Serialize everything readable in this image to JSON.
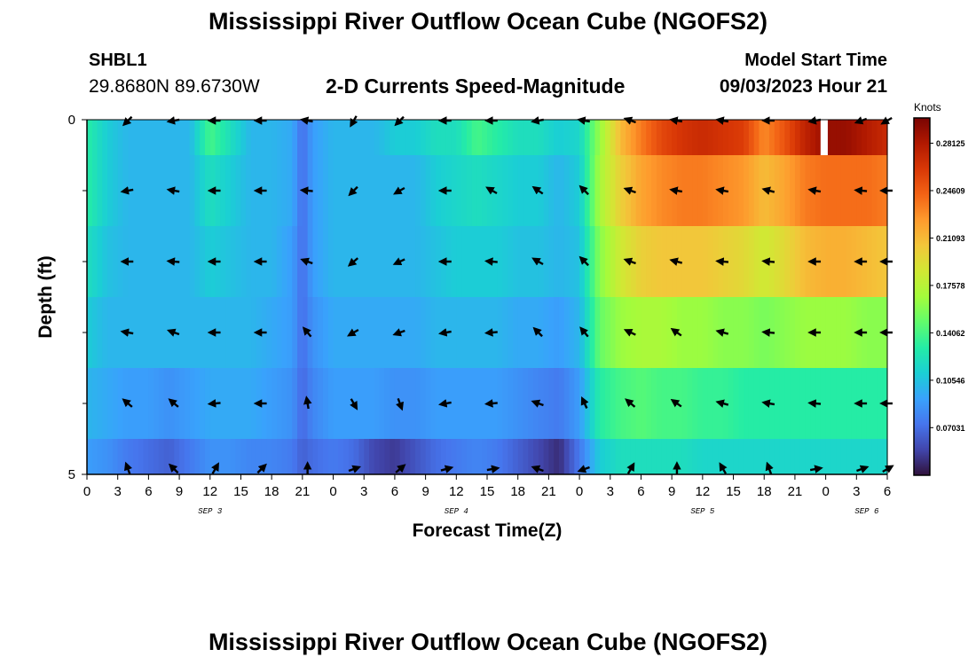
{
  "header": {
    "title": "Mississippi River Outflow Ocean Cube (NGOFS2)",
    "station_id": "SHBL1",
    "station_coords": "29.8680N  89.6730W",
    "subtitle": "2-D Currents Speed-Magnitude",
    "model_start_label": "Model Start Time",
    "model_start_value": "09/03/2023 Hour 21"
  },
  "footer": {
    "title": "Mississippi River Outflow Ocean Cube (NGOFS2)"
  },
  "chart_data": {
    "type": "heatmap",
    "xlabel": "Forecast Time(Z)",
    "ylabel": "Depth (ft)",
    "x_range_hours": [
      0,
      78
    ],
    "y_range_ft": [
      0,
      5
    ],
    "y_inverted": true,
    "depth_ticks": [
      {
        "value": 0,
        "label": "0"
      },
      {
        "value": 5,
        "label": "5"
      }
    ],
    "minor_depth_ticks": [
      1,
      2,
      3,
      4
    ],
    "x_ticks": [
      {
        "hour": 0,
        "label": "0"
      },
      {
        "hour": 3,
        "label": "3"
      },
      {
        "hour": 6,
        "label": "6"
      },
      {
        "hour": 9,
        "label": "9"
      },
      {
        "hour": 12,
        "label": "12"
      },
      {
        "hour": 15,
        "label": "15"
      },
      {
        "hour": 18,
        "label": "18"
      },
      {
        "hour": 21,
        "label": "21"
      },
      {
        "hour": 24,
        "label": "0"
      },
      {
        "hour": 27,
        "label": "3"
      },
      {
        "hour": 30,
        "label": "6"
      },
      {
        "hour": 33,
        "label": "9"
      },
      {
        "hour": 36,
        "label": "12"
      },
      {
        "hour": 39,
        "label": "15"
      },
      {
        "hour": 42,
        "label": "18"
      },
      {
        "hour": 45,
        "label": "21"
      },
      {
        "hour": 48,
        "label": "0"
      },
      {
        "hour": 51,
        "label": "3"
      },
      {
        "hour": 54,
        "label": "6"
      },
      {
        "hour": 57,
        "label": "9"
      },
      {
        "hour": 60,
        "label": "12"
      },
      {
        "hour": 63,
        "label": "15"
      },
      {
        "hour": 66,
        "label": "18"
      },
      {
        "hour": 69,
        "label": "21"
      },
      {
        "hour": 72,
        "label": "0"
      },
      {
        "hour": 75,
        "label": "3"
      },
      {
        "hour": 78,
        "label": "6"
      }
    ],
    "date_labels": [
      {
        "hour": 12,
        "label": "SEP 3"
      },
      {
        "hour": 36,
        "label": "SEP 4"
      },
      {
        "hour": 60,
        "label": "SEP 5"
      },
      {
        "hour": 76,
        "label": "SEP 6"
      }
    ],
    "layers_ft": [
      0,
      1,
      2,
      3,
      4,
      5
    ],
    "speed_hours": [
      0,
      2,
      4,
      6,
      8,
      10,
      12,
      14,
      16,
      18,
      20,
      21,
      22,
      24,
      26,
      28,
      30,
      32,
      34,
      36,
      38,
      40,
      42,
      44,
      46,
      48,
      50,
      52,
      54,
      56,
      58,
      60,
      62,
      64,
      66,
      68,
      70,
      72,
      74,
      76,
      78
    ],
    "speed_knots": [
      [
        0.13,
        0.11,
        0.1,
        0.1,
        0.1,
        0.1,
        0.14,
        0.12,
        0.1,
        0.1,
        0.095,
        0.07,
        0.09,
        0.1,
        0.1,
        0.1,
        0.11,
        0.11,
        0.12,
        0.12,
        0.14,
        0.13,
        0.12,
        0.12,
        0.11,
        0.115,
        0.165,
        0.21,
        0.235,
        0.255,
        0.265,
        0.27,
        0.265,
        0.26,
        0.23,
        0.25,
        0.275,
        0.29,
        0.29,
        0.28,
        0.27
      ],
      [
        0.13,
        0.11,
        0.1,
        0.1,
        0.1,
        0.1,
        0.12,
        0.11,
        0.1,
        0.1,
        0.095,
        0.07,
        0.09,
        0.1,
        0.1,
        0.1,
        0.1,
        0.1,
        0.11,
        0.115,
        0.12,
        0.115,
        0.11,
        0.11,
        0.1,
        0.11,
        0.17,
        0.2,
        0.22,
        0.23,
        0.235,
        0.235,
        0.23,
        0.225,
        0.21,
        0.22,
        0.235,
        0.24,
        0.24,
        0.24,
        0.235
      ],
      [
        0.12,
        0.105,
        0.1,
        0.1,
        0.1,
        0.1,
        0.11,
        0.105,
        0.1,
        0.1,
        0.09,
        0.07,
        0.09,
        0.1,
        0.1,
        0.1,
        0.1,
        0.1,
        0.105,
        0.11,
        0.11,
        0.11,
        0.105,
        0.105,
        0.1,
        0.105,
        0.16,
        0.185,
        0.2,
        0.205,
        0.205,
        0.205,
        0.2,
        0.195,
        0.185,
        0.195,
        0.21,
        0.215,
        0.215,
        0.21,
        0.205
      ],
      [
        0.11,
        0.1,
        0.1,
        0.1,
        0.1,
        0.1,
        0.1,
        0.1,
        0.1,
        0.095,
        0.09,
        0.07,
        0.085,
        0.095,
        0.095,
        0.095,
        0.095,
        0.095,
        0.1,
        0.1,
        0.1,
        0.1,
        0.095,
        0.095,
        0.09,
        0.1,
        0.15,
        0.165,
        0.17,
        0.17,
        0.165,
        0.165,
        0.16,
        0.16,
        0.155,
        0.16,
        0.165,
        0.165,
        0.165,
        0.16,
        0.16
      ],
      [
        0.1,
        0.095,
        0.09,
        0.09,
        0.085,
        0.09,
        0.095,
        0.095,
        0.095,
        0.09,
        0.085,
        0.068,
        0.08,
        0.09,
        0.09,
        0.09,
        0.085,
        0.085,
        0.09,
        0.09,
        0.09,
        0.09,
        0.085,
        0.08,
        0.075,
        0.09,
        0.13,
        0.14,
        0.145,
        0.14,
        0.14,
        0.135,
        0.135,
        0.13,
        0.13,
        0.13,
        0.13,
        0.13,
        0.13,
        0.13,
        0.13
      ],
      [
        0.09,
        0.085,
        0.075,
        0.07,
        0.065,
        0.075,
        0.085,
        0.085,
        0.08,
        0.08,
        0.075,
        0.065,
        0.07,
        0.075,
        0.07,
        0.055,
        0.05,
        0.06,
        0.07,
        0.075,
        0.08,
        0.075,
        0.065,
        0.055,
        0.045,
        0.075,
        0.11,
        0.12,
        0.12,
        0.12,
        0.12,
        0.115,
        0.115,
        0.115,
        0.115,
        0.115,
        0.115,
        0.115,
        0.115,
        0.115,
        0.115
      ]
    ],
    "missing_hour_range": [
      71.5,
      72.2
    ],
    "arrow_hours": [
      4,
      8.5,
      12.5,
      17,
      21.5,
      26,
      30.5,
      35,
      39.5,
      44,
      48.5,
      53,
      57.5,
      62,
      66.5,
      71,
      75.5,
      78
    ],
    "arrow_directions_deg": [
      [
        225,
        190,
        180,
        180,
        170,
        240,
        225,
        180,
        180,
        190,
        170,
        160,
        170,
        170,
        180,
        190,
        200,
        210
      ],
      [
        190,
        170,
        180,
        180,
        175,
        225,
        210,
        180,
        150,
        145,
        135,
        160,
        170,
        170,
        165,
        170,
        175,
        180
      ],
      [
        180,
        175,
        180,
        180,
        160,
        220,
        205,
        180,
        175,
        150,
        135,
        160,
        165,
        175,
        175,
        180,
        180,
        180
      ],
      [
        170,
        160,
        180,
        180,
        130,
        210,
        200,
        190,
        185,
        135,
        130,
        155,
        145,
        165,
        175,
        180,
        180,
        180
      ],
      [
        140,
        140,
        185,
        180,
        100,
        300,
        290,
        190,
        185,
        160,
        115,
        140,
        145,
        165,
        170,
        175,
        180,
        180
      ],
      [
        110,
        135,
        60,
        45,
        90,
        20,
        40,
        15,
        10,
        160,
        200,
        60,
        90,
        120,
        110,
        10,
        20,
        30
      ]
    ],
    "colorbar": {
      "units": "Knots",
      "min": 0.035,
      "max": 0.3,
      "ticks": [
        0.07031,
        0.10546,
        0.14062,
        0.17578,
        0.21093,
        0.24609,
        0.28125
      ],
      "tick_labels": [
        "0.07031",
        "0.10546",
        "0.14062",
        "0.17578",
        "0.21093",
        "0.24609",
        "0.28125"
      ],
      "colors": [
        "#30123b",
        "#4145ab",
        "#4675ed",
        "#39a2fc",
        "#1bcfd4",
        "#24eca6",
        "#61fc6c",
        "#a4fc3b",
        "#d1e834",
        "#f3c63a",
        "#fe9b2d",
        "#f36315",
        "#d93806",
        "#b11901",
        "#7a0402"
      ]
    }
  }
}
